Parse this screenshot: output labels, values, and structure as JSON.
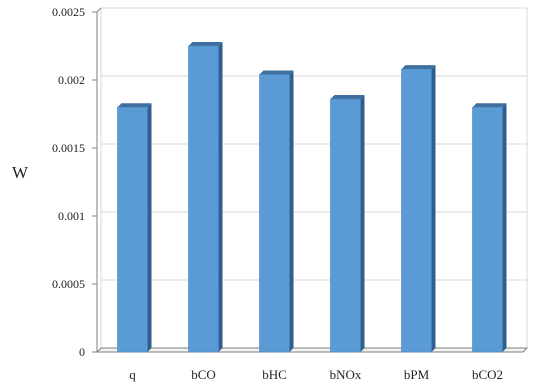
{
  "chart_data": {
    "type": "bar",
    "categories": [
      "q",
      "bCO",
      "bHC",
      "bNOx",
      "bPM",
      "bCO2"
    ],
    "values": [
      0.0018,
      0.00225,
      0.00204,
      0.00186,
      0.00208,
      0.0018
    ],
    "xlabel": "",
    "ylabel": "W",
    "ylim": [
      0,
      0.0025
    ],
    "yticks": [
      0,
      0.0005,
      0.001,
      0.0015,
      0.002,
      0.0025
    ],
    "ytick_labels": [
      "0",
      "0.0005",
      "0.001",
      "0.0015",
      "0.002",
      "0.0025"
    ],
    "grid": true,
    "style": "3d-column",
    "colors": {
      "bar_front": "#5b9bd5",
      "bar_side": "#2e5f8e",
      "bar_top": "#3f6f9c",
      "grid": "#d9d9d9",
      "axis": "#7f7f7f"
    }
  }
}
